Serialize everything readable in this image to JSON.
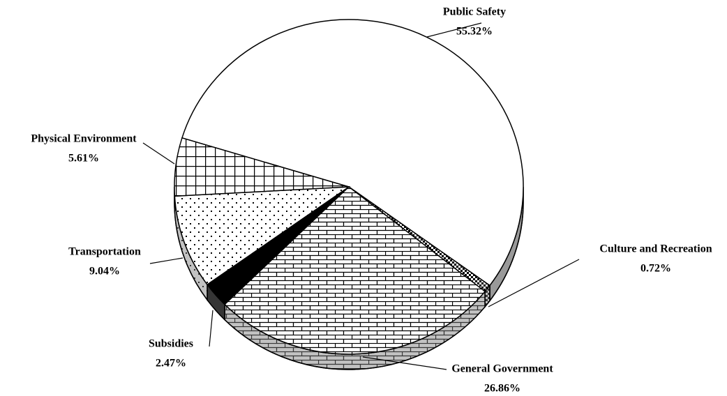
{
  "chart_data": {
    "type": "pie",
    "categories": [
      "Public Safety",
      "Culture and Recreation",
      "General Government",
      "Subsidies",
      "Transportation",
      "Physical Environment"
    ],
    "values": [
      55.32,
      0.72,
      26.86,
      2.47,
      9.04,
      5.61
    ],
    "value_labels": [
      "55.32%",
      "0.72%",
      "26.86%",
      "2.47%",
      "9.04%",
      "5.61%"
    ]
  }
}
